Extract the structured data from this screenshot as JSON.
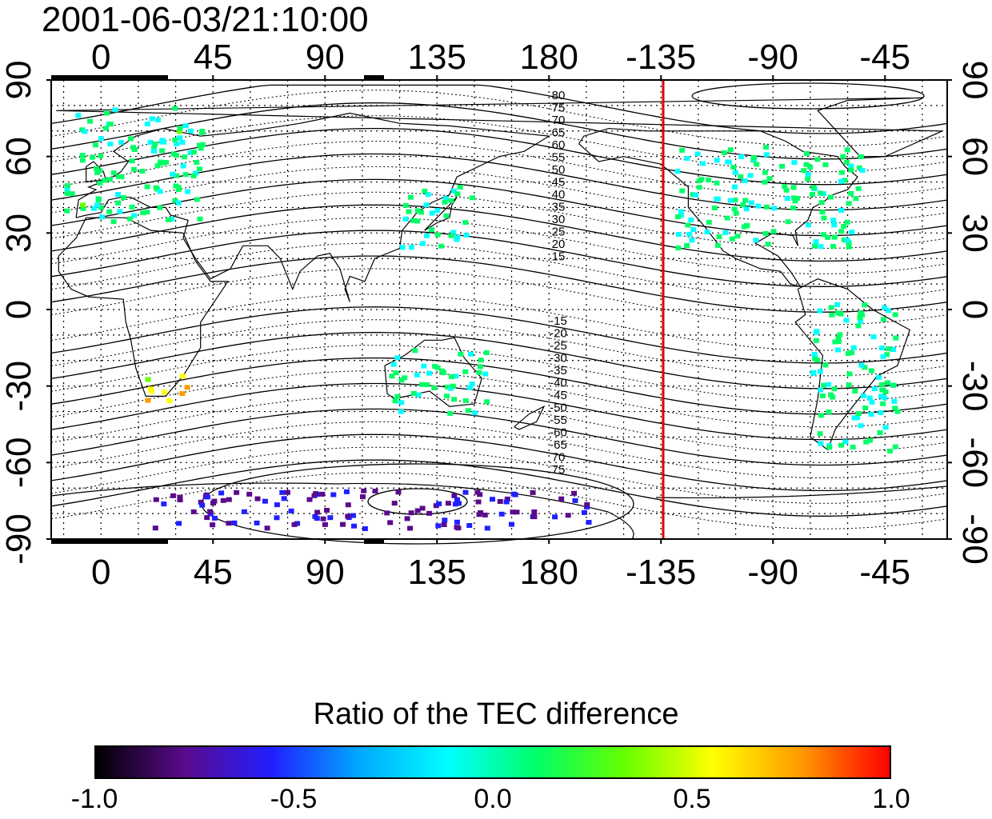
{
  "figure": {
    "timestamp": "2001-06-03/21:10:00",
    "x_ticks_top": [
      "0",
      "45",
      "90",
      "135",
      "180",
      "-135",
      "-90",
      "-45"
    ],
    "x_ticks_bottom": [
      "0",
      "45",
      "90",
      "135",
      "180",
      "-135",
      "-90",
      "-45"
    ],
    "y_ticks_left": [
      "90",
      "60",
      "30",
      "0",
      "-30",
      "-60",
      "-90"
    ],
    "y_ticks_right": [
      "90",
      "60",
      "30",
      "0",
      "-30",
      "-60",
      "-90"
    ],
    "magnetic_lat_labels_north": [
      "80",
      "75",
      "70",
      "65",
      "60",
      "55",
      "50",
      "45",
      "40",
      "35",
      "30",
      "25",
      "20",
      "15"
    ],
    "magnetic_lat_labels_south": [
      "-15",
      "-20",
      "-25",
      "-30",
      "-35",
      "-40",
      "-45",
      "-50",
      "-55",
      "-60",
      "-65",
      "70",
      "75"
    ],
    "terminator_line_color": "#dd0000",
    "grid": true
  },
  "colorbar": {
    "title": "Ratio of the TEC difference",
    "ticks": [
      "-1.0",
      "-0.5",
      "0.0",
      "0.5",
      "1.0"
    ],
    "colors": [
      "#000000",
      "#5a0a8c",
      "#2020ff",
      "#00aaff",
      "#00ffff",
      "#00ff66",
      "#66ff00",
      "#ffff00",
      "#ff9900",
      "#ff0000"
    ]
  },
  "chart_data": {
    "type": "heatmap",
    "title": "2001-06-03/21:10:00",
    "xlabel": "",
    "ylabel": "",
    "xlim": [
      -20,
      340
    ],
    "ylim": [
      -90,
      90
    ],
    "colorbar_label": "Ratio of the TEC difference",
    "colorbar_range": [
      -1.0,
      1.0
    ],
    "terminator_longitude": -137,
    "regions": [
      {
        "name": "Europe",
        "lon": [
          -15,
          40
        ],
        "lat": [
          35,
          80
        ],
        "ratio": 0.05
      },
      {
        "name": "North America",
        "lon": [
          -130,
          -55
        ],
        "lat": [
          25,
          65
        ],
        "ratio": 0.05
      },
      {
        "name": "East Asia",
        "lon": [
          120,
          150
        ],
        "lat": [
          25,
          50
        ],
        "ratio": 0.05
      },
      {
        "name": "Australia",
        "lon": [
          115,
          155
        ],
        "lat": [
          -40,
          -15
        ],
        "ratio": 0.05
      },
      {
        "name": "South America",
        "lon": [
          -75,
          -40
        ],
        "lat": [
          -55,
          5
        ],
        "ratio": 0.05
      },
      {
        "name": "Southern Africa",
        "lon": [
          15,
          35
        ],
        "lat": [
          -35,
          -25
        ],
        "ratio": 0.6
      },
      {
        "name": "Antarctica",
        "lon": [
          20,
          195
        ],
        "lat": [
          -85,
          -70
        ],
        "ratio": -0.7
      }
    ]
  }
}
